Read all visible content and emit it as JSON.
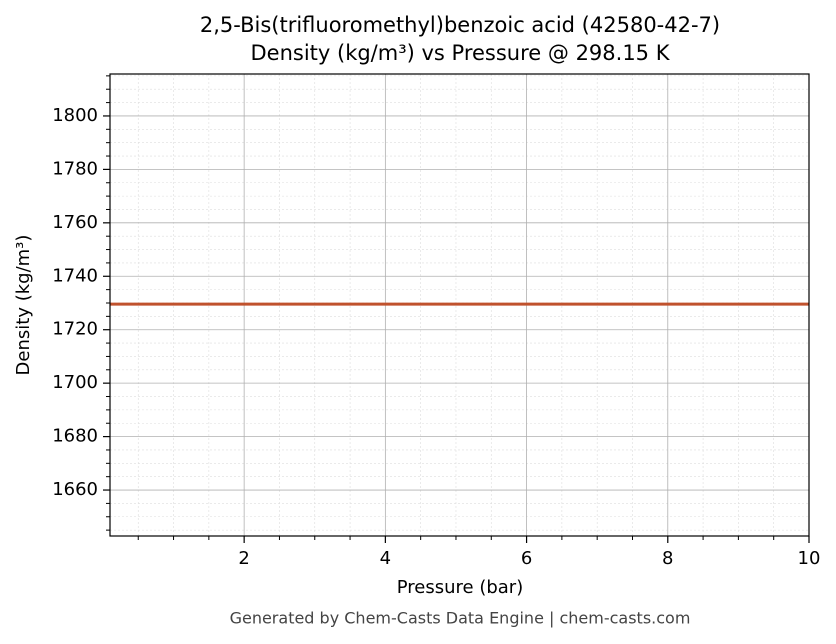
{
  "chart_data": {
    "type": "line",
    "title": "2,5-Bis(trifluoromethyl)benzoic acid (42580-42-7)",
    "subtitle": "Density (kg/m³) vs Pressure @ 298.15 K",
    "x_label": "Pressure (bar)",
    "y_label": "Density (kg/m³)",
    "footer": "Generated by Chem-Casts Data Engine | chem-casts.com",
    "x": [
      0.1,
      10
    ],
    "series": [
      {
        "name": "Density",
        "color": "#c0522d",
        "values": [
          1729.6,
          1729.6
        ]
      }
    ],
    "xlim": [
      0.1,
      10
    ],
    "xticks": [
      2,
      4,
      6,
      8,
      10
    ],
    "xminorticks": [
      0.5,
      1,
      1.5,
      2.5,
      3,
      3.5,
      4.5,
      5,
      5.5,
      6.5,
      7,
      7.5,
      8.5,
      9,
      9.5
    ],
    "ylim": [
      1642.8,
      1815.7
    ],
    "yticks": [
      1660,
      1680,
      1700,
      1720,
      1740,
      1760,
      1780,
      1800
    ],
    "yminorticks": [
      1645,
      1650,
      1655,
      1665,
      1670,
      1675,
      1685,
      1690,
      1695,
      1705,
      1710,
      1715,
      1725,
      1730,
      1735,
      1745,
      1750,
      1755,
      1765,
      1770,
      1775,
      1785,
      1790,
      1795,
      1805,
      1810,
      1815
    ],
    "grid": true,
    "minor_grid": true
  }
}
